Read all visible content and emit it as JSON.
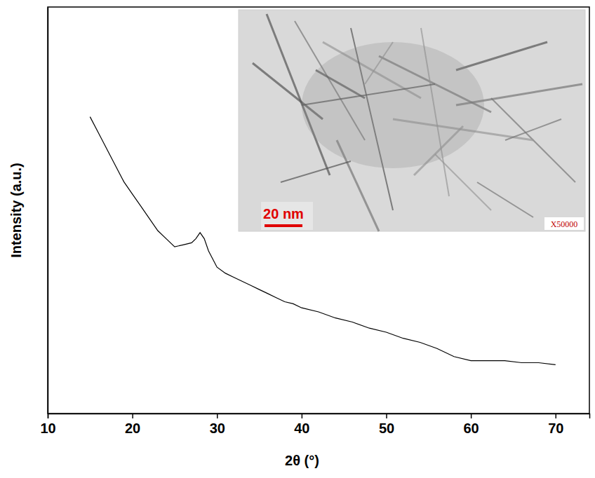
{
  "chart_data": {
    "type": "line",
    "x_label": "2θ (°)",
    "y_label": "Intensity (a.u.)",
    "x": [
      15,
      16,
      17,
      18,
      19,
      20,
      21,
      22,
      23,
      24,
      25,
      26,
      27,
      27.5,
      28,
      28.5,
      29,
      30,
      31,
      32,
      33,
      34,
      35,
      36,
      37,
      38,
      39,
      40,
      42,
      44,
      46,
      48,
      50,
      52,
      54,
      56,
      58,
      60,
      62,
      64,
      66,
      68,
      70
    ],
    "values": [
      73,
      69,
      65,
      61,
      57,
      54,
      51,
      48,
      45,
      43,
      41,
      41.5,
      42,
      43,
      44.5,
      43,
      40,
      36,
      34.5,
      33.5,
      32.5,
      31.5,
      30.5,
      29.5,
      28.5,
      27.5,
      27,
      26,
      25,
      23.5,
      22.5,
      21,
      20,
      18.5,
      17.5,
      16,
      14,
      13,
      13,
      13,
      12.5,
      12.5,
      12
    ],
    "color": "#000000",
    "xlim": [
      10,
      74
    ],
    "xticks": [
      10,
      20,
      30,
      40,
      50,
      60,
      70
    ],
    "ylim": [
      0,
      100
    ],
    "tick_labels": "x",
    "grid": false,
    "inset": {
      "scale_bar": "20 nm",
      "magnification": "X50000"
    }
  }
}
